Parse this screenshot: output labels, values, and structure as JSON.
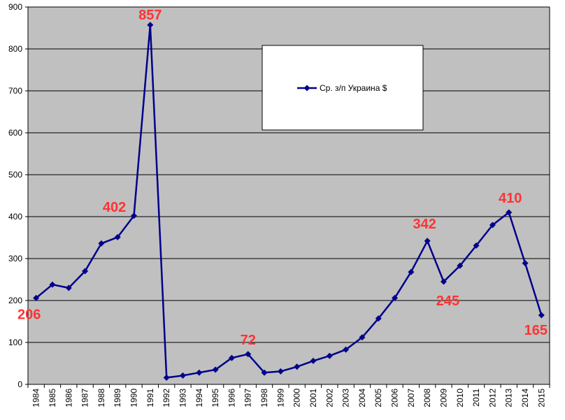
{
  "chart_data": {
    "type": "line",
    "title": "",
    "xlabel": "",
    "ylabel": "",
    "ylim": [
      0,
      900
    ],
    "y_ticks": [
      0,
      100,
      200,
      300,
      400,
      500,
      600,
      700,
      800,
      900
    ],
    "grid": true,
    "legend_position": "top-right",
    "colors": {
      "plot_background": "#c0c0c0",
      "series": "#00008b",
      "data_label": "#ff3333",
      "gridline": "#000000"
    },
    "x": [
      "1984",
      "1985",
      "1986",
      "1987",
      "1988",
      "1989",
      "1990",
      "1991",
      "1992",
      "1993",
      "1994",
      "1995",
      "1996",
      "1997",
      "1998",
      "1999",
      "2000",
      "2001",
      "2002",
      "2003",
      "2004",
      "2005",
      "2006",
      "2007",
      "2008",
      "2009",
      "2010",
      "2011",
      "2012",
      "2013",
      "2014",
      "2015"
    ],
    "series": [
      {
        "name": "Ср. з/п Украина $",
        "values": [
          206,
          238,
          230,
          270,
          336,
          351,
          402,
          857,
          16,
          21,
          28,
          35,
          63,
          72,
          28,
          31,
          42,
          56,
          68,
          83,
          112,
          157,
          206,
          268,
          342,
          245,
          283,
          331,
          380,
          410,
          289,
          165
        ]
      }
    ],
    "annotations": [
      {
        "x": "1984",
        "text": "206"
      },
      {
        "x": "1990",
        "text": "402"
      },
      {
        "x": "1991",
        "text": "857"
      },
      {
        "x": "1997",
        "text": "72"
      },
      {
        "x": "2008",
        "text": "342"
      },
      {
        "x": "2009",
        "text": "245"
      },
      {
        "x": "2013",
        "text": "410"
      },
      {
        "x": "2015",
        "text": "165"
      }
    ]
  }
}
